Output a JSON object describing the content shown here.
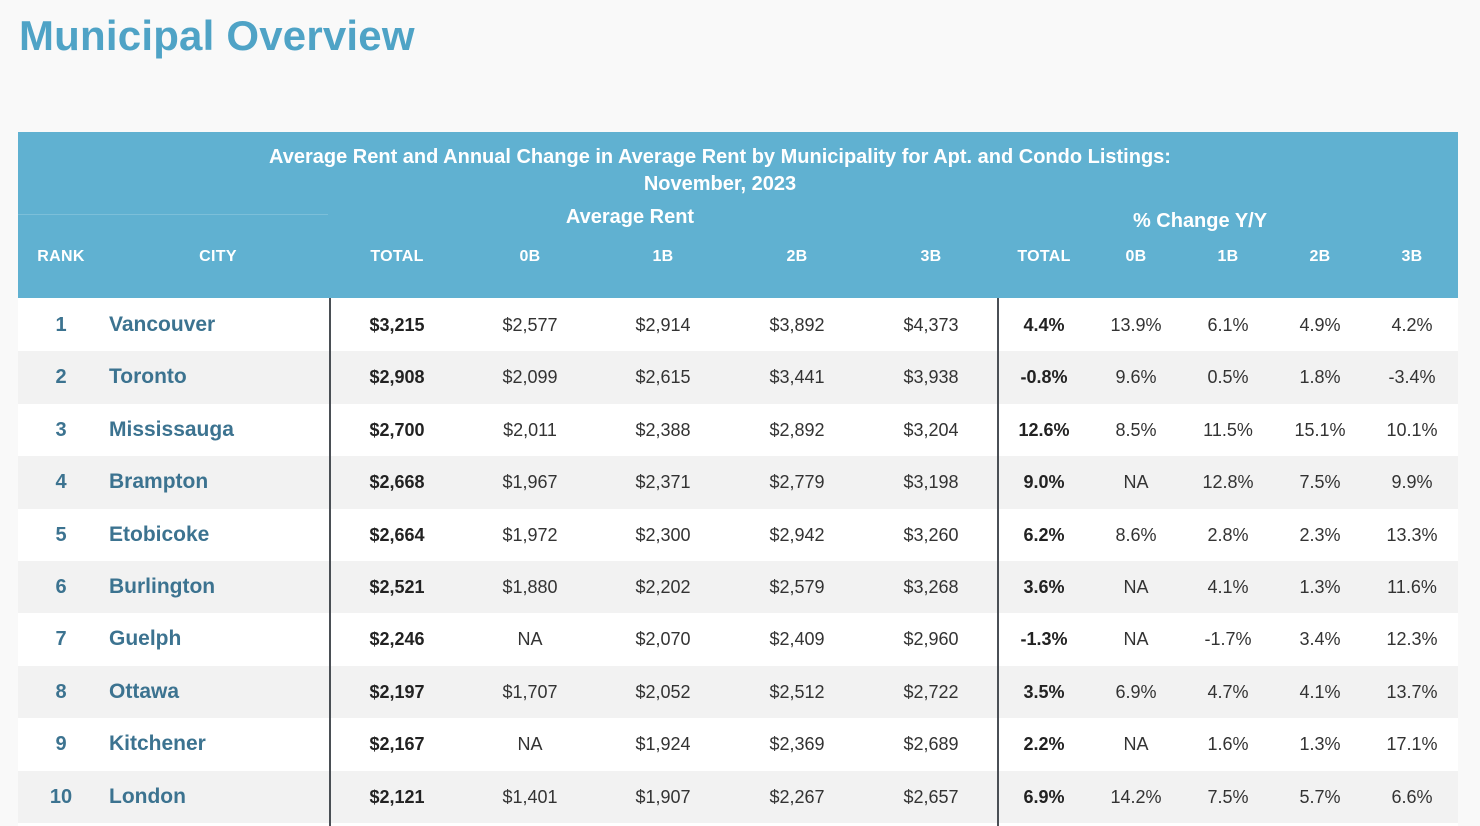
{
  "page_title": "Municipal Overview",
  "table": {
    "caption_line1": "Average Rent and Annual Change in Average Rent by Municipality for Apt. and Condo Listings:",
    "caption_line2": "November, 2023",
    "group_average_rent": "Average Rent",
    "group_change": "% Change Y/Y",
    "headers": {
      "rank": "RANK",
      "city": "CITY",
      "rent_total": "TOTAL",
      "rent_0b": "0B",
      "rent_1b": "1B",
      "rent_2b": "2B",
      "rent_3b": "3B",
      "chg_total": "TOTAL",
      "chg_0b": "0B",
      "chg_1b": "1B",
      "chg_2b": "2B",
      "chg_3b": "3B"
    },
    "rows": [
      {
        "rank": "1",
        "city": "Vancouver",
        "rent_total": "$3,215",
        "rent_0b": "$2,577",
        "rent_1b": "$2,914",
        "rent_2b": "$3,892",
        "rent_3b": "$4,373",
        "chg_total": "4.4%",
        "chg_0b": "13.9%",
        "chg_1b": "6.1%",
        "chg_2b": "4.9%",
        "chg_3b": "4.2%"
      },
      {
        "rank": "2",
        "city": "Toronto",
        "rent_total": "$2,908",
        "rent_0b": "$2,099",
        "rent_1b": "$2,615",
        "rent_2b": "$3,441",
        "rent_3b": "$3,938",
        "chg_total": "-0.8%",
        "chg_0b": "9.6%",
        "chg_1b": "0.5%",
        "chg_2b": "1.8%",
        "chg_3b": "-3.4%"
      },
      {
        "rank": "3",
        "city": "Mississauga",
        "rent_total": "$2,700",
        "rent_0b": "$2,011",
        "rent_1b": "$2,388",
        "rent_2b": "$2,892",
        "rent_3b": "$3,204",
        "chg_total": "12.6%",
        "chg_0b": "8.5%",
        "chg_1b": "11.5%",
        "chg_2b": "15.1%",
        "chg_3b": "10.1%"
      },
      {
        "rank": "4",
        "city": "Brampton",
        "rent_total": "$2,668",
        "rent_0b": "$1,967",
        "rent_1b": "$2,371",
        "rent_2b": "$2,779",
        "rent_3b": "$3,198",
        "chg_total": "9.0%",
        "chg_0b": "NA",
        "chg_1b": "12.8%",
        "chg_2b": "7.5%",
        "chg_3b": "9.9%"
      },
      {
        "rank": "5",
        "city": "Etobicoke",
        "rent_total": "$2,664",
        "rent_0b": "$1,972",
        "rent_1b": "$2,300",
        "rent_2b": "$2,942",
        "rent_3b": "$3,260",
        "chg_total": "6.2%",
        "chg_0b": "8.6%",
        "chg_1b": "2.8%",
        "chg_2b": "2.3%",
        "chg_3b": "13.3%"
      },
      {
        "rank": "6",
        "city": "Burlington",
        "rent_total": "$2,521",
        "rent_0b": "$1,880",
        "rent_1b": "$2,202",
        "rent_2b": "$2,579",
        "rent_3b": "$3,268",
        "chg_total": "3.6%",
        "chg_0b": "NA",
        "chg_1b": "4.1%",
        "chg_2b": "1.3%",
        "chg_3b": "11.6%"
      },
      {
        "rank": "7",
        "city": "Guelph",
        "rent_total": "$2,246",
        "rent_0b": "NA",
        "rent_1b": "$2,070",
        "rent_2b": "$2,409",
        "rent_3b": "$2,960",
        "chg_total": "-1.3%",
        "chg_0b": "NA",
        "chg_1b": "-1.7%",
        "chg_2b": "3.4%",
        "chg_3b": "12.3%"
      },
      {
        "rank": "8",
        "city": "Ottawa",
        "rent_total": "$2,197",
        "rent_0b": "$1,707",
        "rent_1b": "$2,052",
        "rent_2b": "$2,512",
        "rent_3b": "$2,722",
        "chg_total": "3.5%",
        "chg_0b": "6.9%",
        "chg_1b": "4.7%",
        "chg_2b": "4.1%",
        "chg_3b": "13.7%"
      },
      {
        "rank": "9",
        "city": "Kitchener",
        "rent_total": "$2,167",
        "rent_0b": "NA",
        "rent_1b": "$1,924",
        "rent_2b": "$2,369",
        "rent_3b": "$2,689",
        "chg_total": "2.2%",
        "chg_0b": "NA",
        "chg_1b": "1.6%",
        "chg_2b": "1.3%",
        "chg_3b": "17.1%"
      },
      {
        "rank": "10",
        "city": "London",
        "rent_total": "$2,121",
        "rent_0b": "$1,401",
        "rent_1b": "$1,907",
        "rent_2b": "$2,267",
        "rent_3b": "$2,657",
        "chg_total": "6.9%",
        "chg_0b": "14.2%",
        "chg_1b": "7.5%",
        "chg_2b": "5.7%",
        "chg_3b": "6.6%"
      }
    ]
  },
  "colors": {
    "title": "#4fa3c6",
    "header_bg": "#60b1d1",
    "city_text": "#3c7390",
    "row_alt_bg": "#f2f2f2"
  }
}
